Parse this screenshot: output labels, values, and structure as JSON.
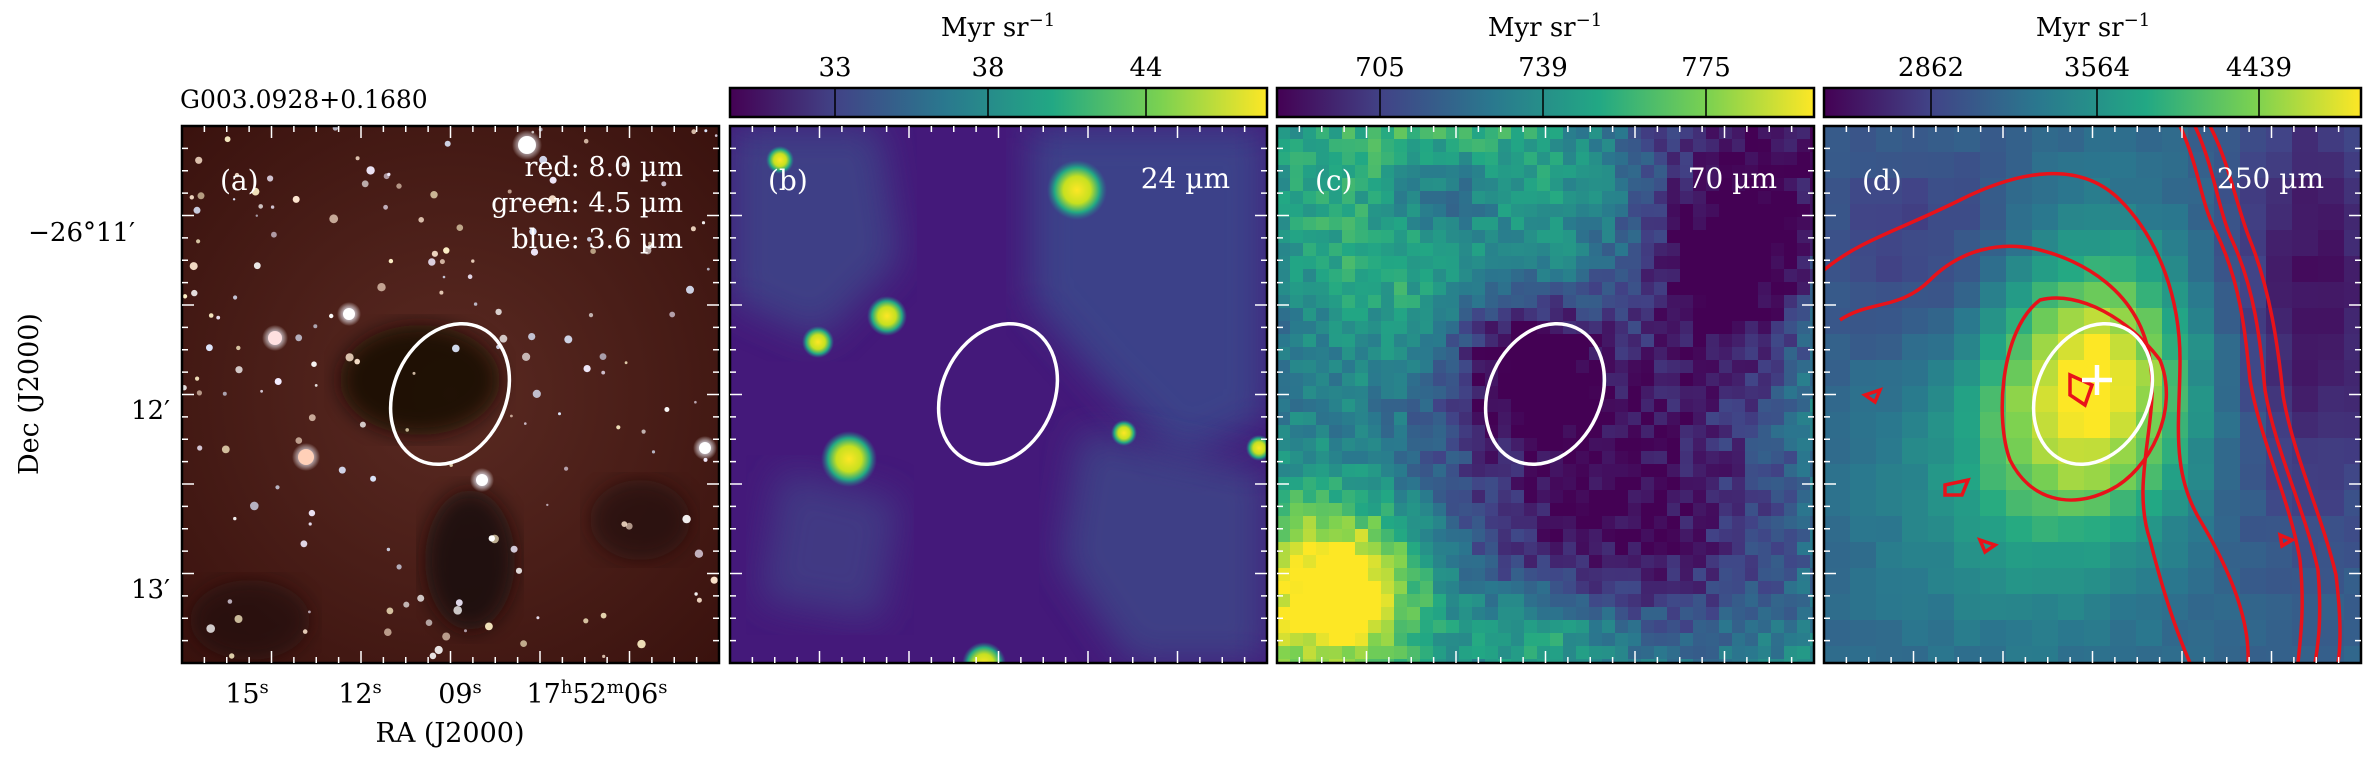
{
  "figure": {
    "source_title": "G003.0928+0.1680",
    "xlabel": "RA (J2000)",
    "ylabel": "Dec (J2000)",
    "ra_ticks": [
      "15",
      "12",
      "09",
      "17",
      "52",
      "06"
    ],
    "ra_tick_units": [
      "s",
      "s",
      "s",
      "h",
      "m",
      "s"
    ],
    "dec_ticks": [
      "−26°11′",
      "12′",
      "13′"
    ]
  },
  "panels": [
    {
      "id": "a",
      "label": "(a)",
      "bands": [
        "red: 8.0 µm",
        "green: 4.5 µm",
        "blue: 3.6 µm"
      ],
      "image": "rgb-composite"
    },
    {
      "id": "b",
      "label": "(b)",
      "band": "24 µm",
      "colorbar": {
        "unit": "Myr sr",
        "unit_exp": "−1",
        "ticks": [
          "33",
          "38",
          "44"
        ]
      }
    },
    {
      "id": "c",
      "label": "(c)",
      "band": "70 µm",
      "colorbar": {
        "unit": "Myr sr",
        "unit_exp": "−1",
        "ticks": [
          "705",
          "739",
          "775"
        ]
      }
    },
    {
      "id": "d",
      "label": "(d)",
      "band": "250 µm",
      "colorbar": {
        "unit": "Myr sr",
        "unit_exp": "−1",
        "ticks": [
          "2862",
          "3564",
          "4439"
        ]
      }
    }
  ],
  "colors": {
    "viridis_low": "#440154",
    "viridis_mid": "#21918c",
    "viridis_high": "#fde725",
    "ellipse": "#ffffff",
    "contour": "#e8121a"
  }
}
